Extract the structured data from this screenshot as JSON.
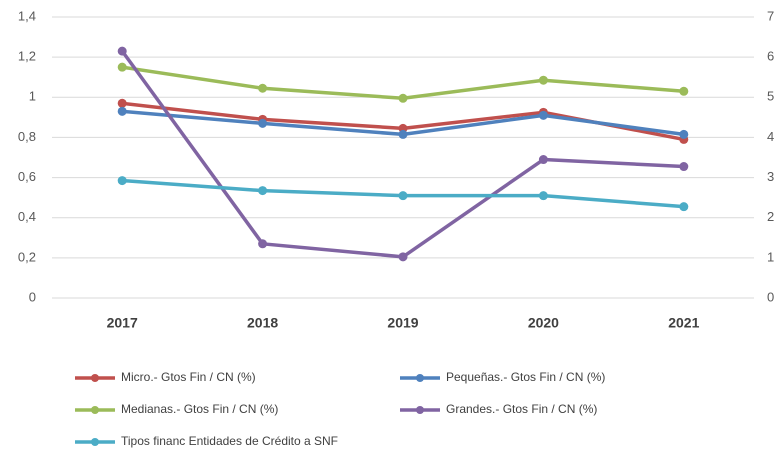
{
  "chart_data": {
    "type": "line",
    "categories": [
      "2017",
      "2018",
      "2019",
      "2020",
      "2021"
    ],
    "series": [
      {
        "name": "Micro.- Gtos Fin / CN (%)",
        "color": "#c0504d",
        "values": [
          0.97,
          0.89,
          0.845,
          0.925,
          0.79
        ]
      },
      {
        "name": "Pequeñas.- Gtos Fin / CN (%)",
        "color": "#4f81bd",
        "values": [
          0.93,
          0.87,
          0.815,
          0.91,
          0.815
        ]
      },
      {
        "name": "Medianas.- Gtos Fin / CN (%)",
        "color": "#9bbb59",
        "values": [
          1.15,
          1.045,
          0.995,
          1.085,
          1.03
        ]
      },
      {
        "name": "Grandes.- Gtos Fin / CN (%)",
        "color": "#8064a2",
        "values": [
          1.23,
          0.27,
          0.205,
          0.69,
          0.655
        ]
      },
      {
        "name": "Tipos financ Entidades de Crédito a SNF",
        "color": "#4bacc6",
        "axis": "y2",
        "values": [
          2.925,
          2.675,
          2.55,
          2.55,
          2.275
        ]
      }
    ],
    "ylim": [
      0,
      1.4
    ],
    "yticks": [
      0,
      {
        "value": 0.2,
        "label": "0,2"
      },
      {
        "value": 0.4,
        "label": "0,4"
      },
      {
        "value": 0.6,
        "label": "0,6"
      },
      {
        "value": 0.8,
        "label": "0,8"
      },
      1,
      {
        "value": 1.2,
        "label": "1,2"
      },
      {
        "value": 1.4,
        "label": "1,4"
      }
    ],
    "y2lim": [
      0,
      7
    ],
    "y2ticks": [
      0,
      1,
      2,
      3,
      4,
      5,
      6,
      7
    ],
    "grid": true
  }
}
